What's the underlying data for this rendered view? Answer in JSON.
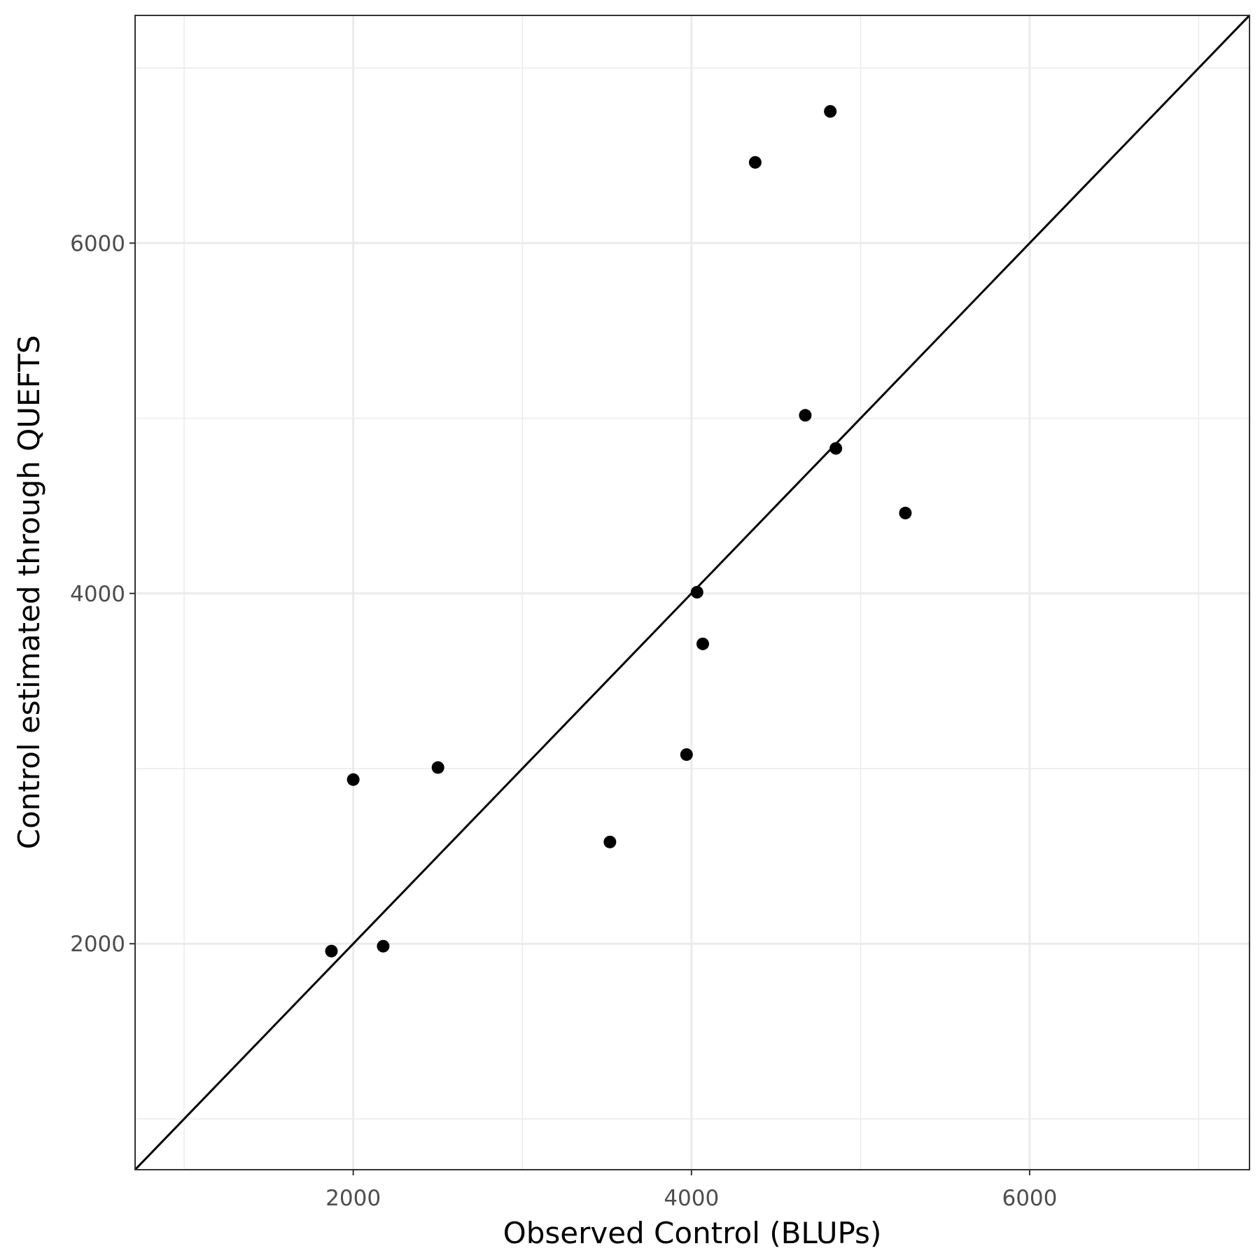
{
  "chart_data": {
    "type": "scatter",
    "x_label": "Observed Control (BLUPs)",
    "y_label": "Control estimated through QUEFTS",
    "x": [
      4821,
      4377,
      4673,
      4854,
      5265,
      4033,
      4067,
      3971,
      2501,
      2000,
      3518,
      2177,
      1871
    ],
    "values": [
      6752,
      6461,
      5017,
      4828,
      4459,
      4007,
      3712,
      3080,
      3006,
      2937,
      2581,
      1986,
      1958
    ],
    "color": "#000000",
    "xlim": [
      710,
      7300
    ],
    "ylim": [
      710,
      7300
    ],
    "xticks": [
      2000,
      4000,
      6000
    ],
    "yticks": [
      2000,
      4000,
      6000
    ],
    "minor_xticks": [
      1000,
      3000,
      5000,
      7000
    ],
    "minor_yticks": [
      1000,
      3000,
      5000,
      7000
    ],
    "grid": true,
    "identity_line": true
  }
}
